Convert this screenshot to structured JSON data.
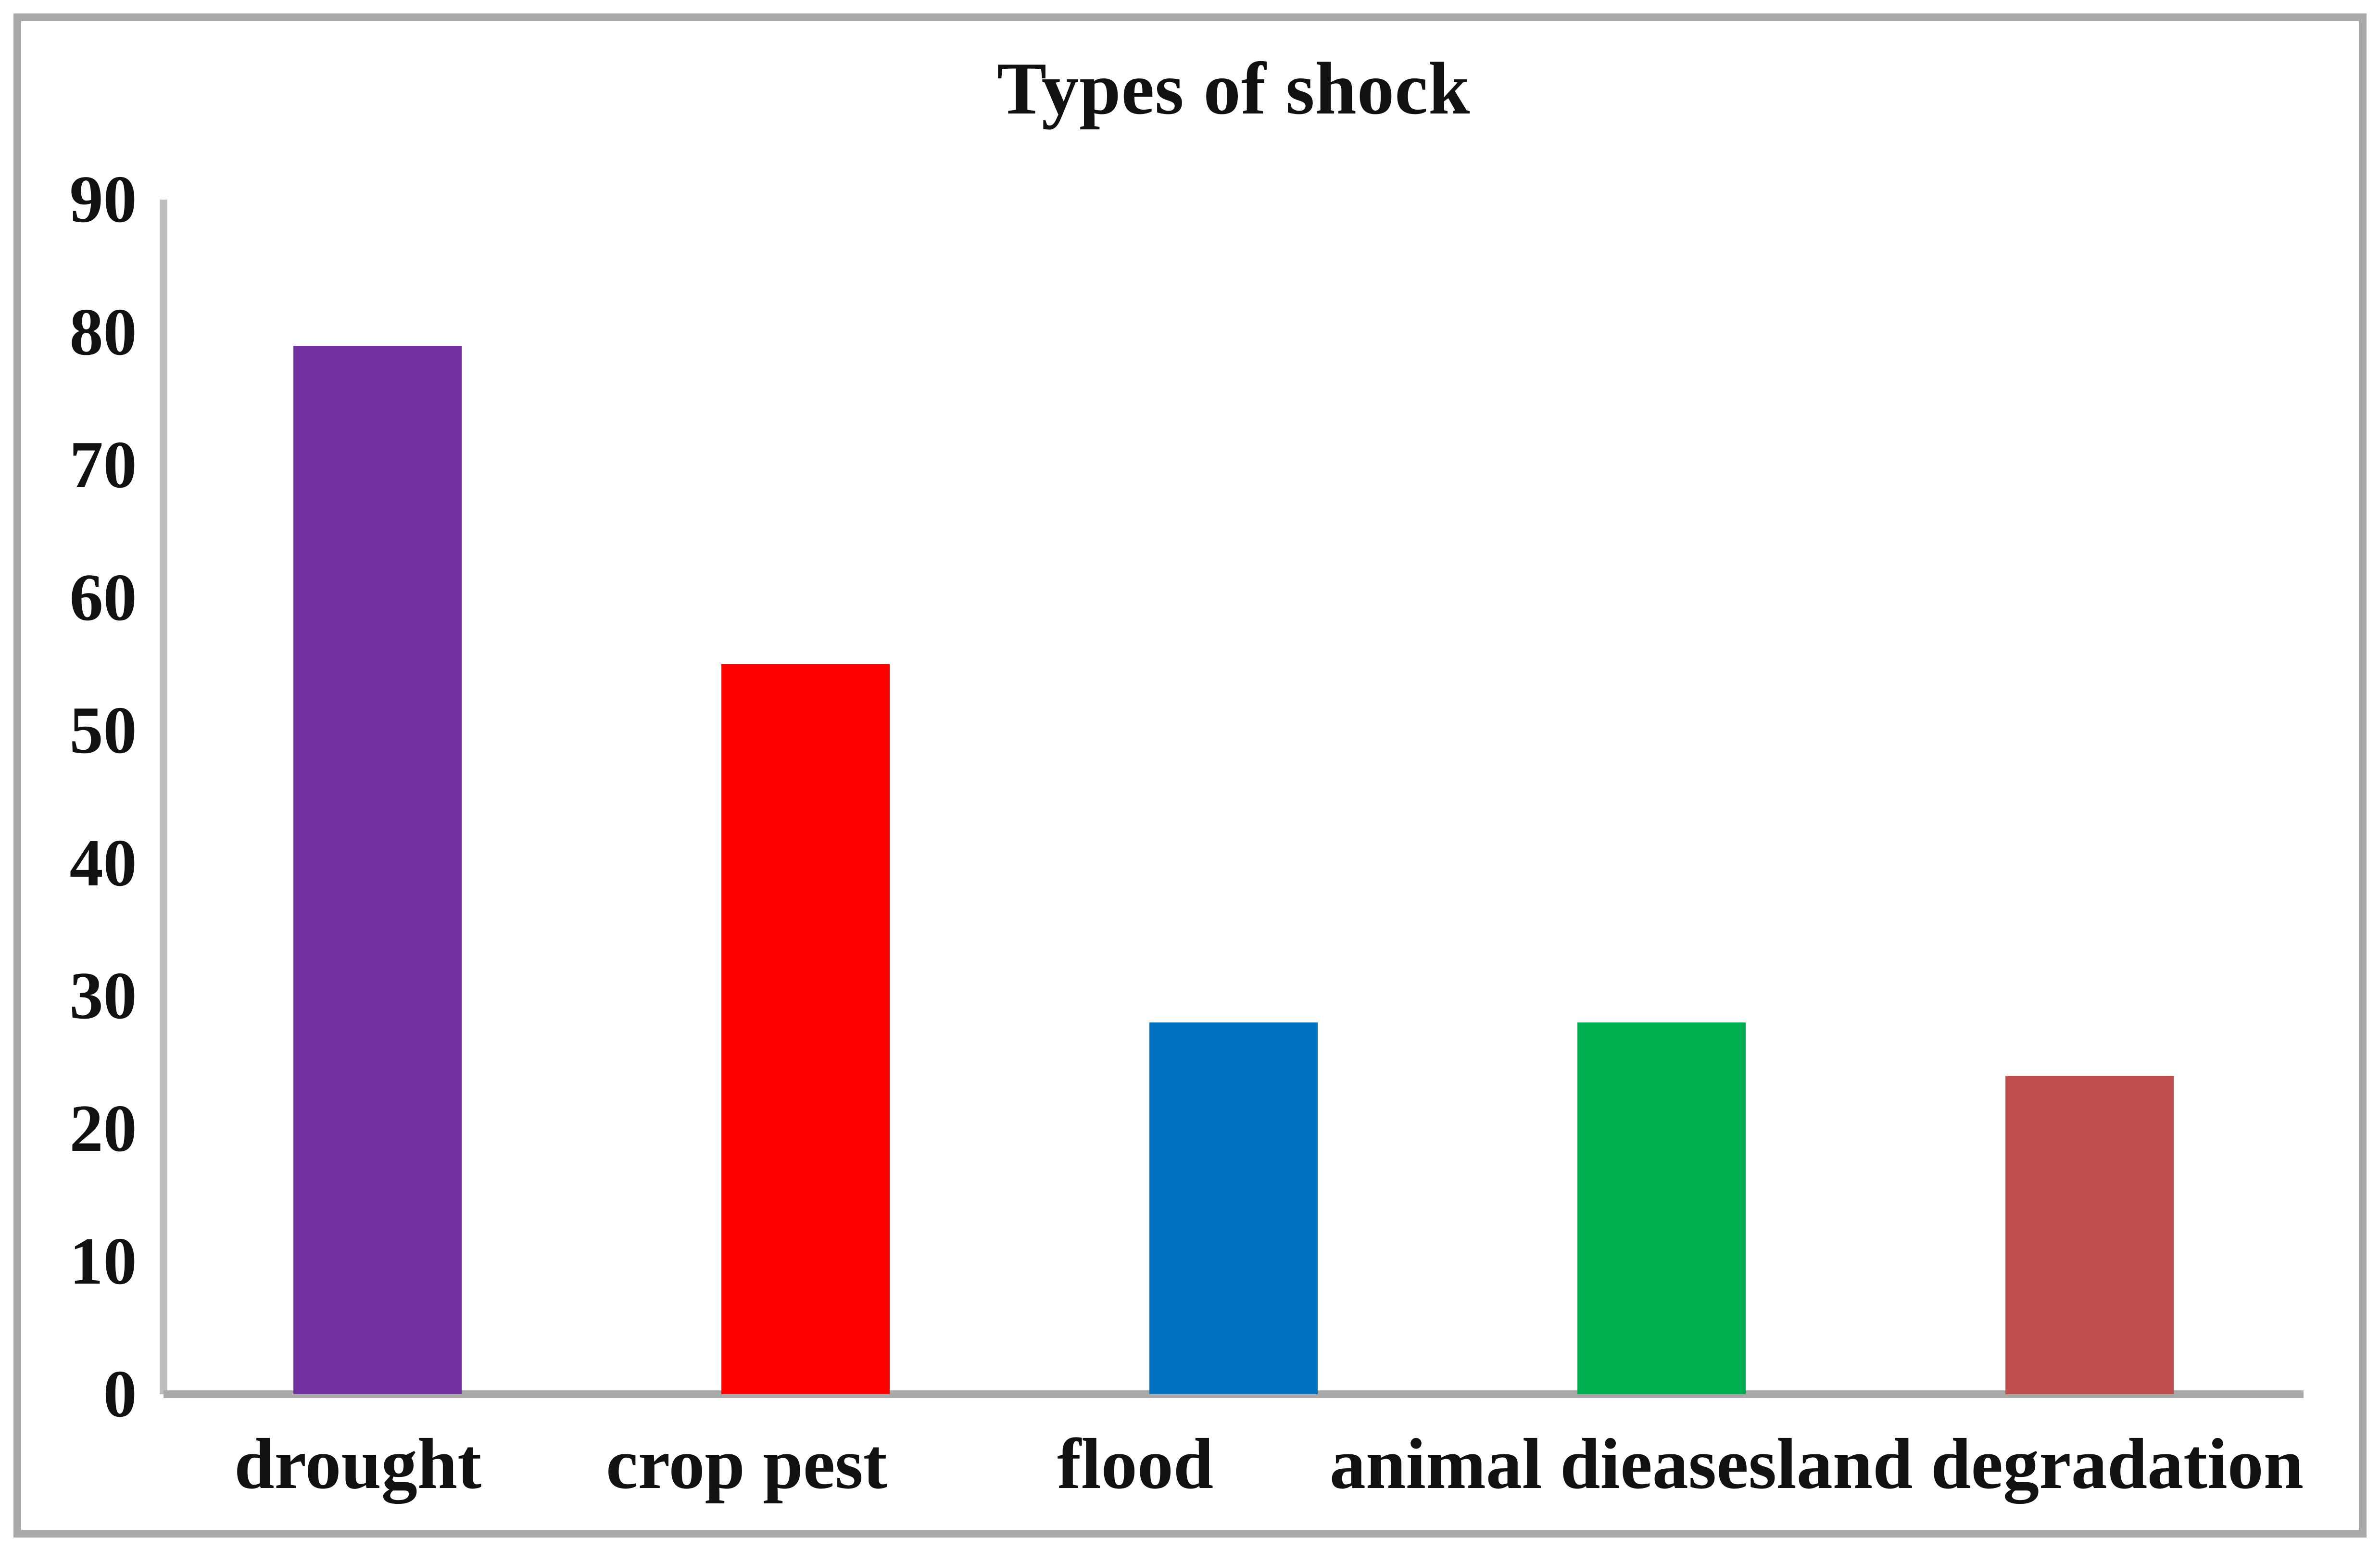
{
  "chart_data": {
    "type": "bar",
    "title": "Types of shock",
    "categories": [
      "drought",
      "crop pest",
      "flood",
      "animal dieases",
      "land degradation"
    ],
    "values": [
      79,
      55,
      28,
      28,
      24
    ],
    "bar_colors": [
      "#7030A0",
      "#FF0000",
      "#0070C0",
      "#00B050",
      "#C0504D"
    ],
    "ylim": [
      0,
      90
    ],
    "yticks": [
      90,
      80,
      70,
      60,
      50,
      40,
      30,
      20,
      10,
      0
    ],
    "xlabel": "",
    "ylabel": "",
    "grid": false,
    "legend": false,
    "axis_line_color": "#A9A9A9",
    "frame_border_color": "#A9A9A9",
    "background_color": "#FFFFFF",
    "text_color": "#111111"
  }
}
